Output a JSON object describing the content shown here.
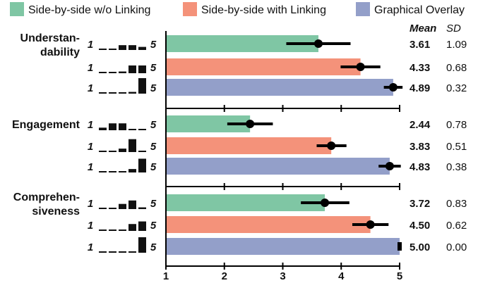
{
  "chart_data": {
    "type": "bar",
    "orientation": "horizontal",
    "series": [
      {
        "name": "Side-by-side w/o Linking",
        "color": "#7fc6a4"
      },
      {
        "name": "Side-by-side with Linking",
        "color": "#f4927a"
      },
      {
        "name": "Graphical Overlay",
        "color": "#939fc9"
      }
    ],
    "stat_headers": {
      "mean": "Mean",
      "sd": "SD"
    },
    "scale": {
      "min_label": "1",
      "max_label": "5"
    },
    "xlim": [
      1,
      5
    ],
    "xticks": [
      "1",
      "2",
      "3",
      "4",
      "5"
    ],
    "grid": false,
    "legend_position": "top",
    "groups": [
      {
        "label_lines": [
          "Understan-",
          "dability"
        ],
        "rows": [
          {
            "series": 0,
            "mean": 3.61,
            "sd": 1.09,
            "mean_text": "3.61",
            "sd_text": "1.09",
            "ci": [
              3.06,
              4.16
            ],
            "hist": [
              0.05,
              0.05,
              0.28,
              0.28,
              0.18
            ]
          },
          {
            "series": 1,
            "mean": 4.33,
            "sd": 0.68,
            "mean_text": "4.33",
            "sd_text": "0.68",
            "ci": [
              3.99,
              4.67
            ],
            "hist": [
              0,
              0,
              0.1,
              0.45,
              0.45
            ]
          },
          {
            "series": 2,
            "mean": 4.89,
            "sd": 0.32,
            "mean_text": "4.89",
            "sd_text": "0.32",
            "ci": [
              4.73,
              5.05
            ],
            "hist": [
              0,
              0,
              0,
              0.1,
              0.9
            ]
          }
        ]
      },
      {
        "label_lines": [
          "Engagement"
        ],
        "rows": [
          {
            "series": 0,
            "mean": 2.44,
            "sd": 0.78,
            "mean_text": "2.44",
            "sd_text": "0.78",
            "ci": [
              2.05,
              2.83
            ],
            "hist": [
              0.15,
              0.4,
              0.4,
              0.05,
              0
            ]
          },
          {
            "series": 1,
            "mean": 3.83,
            "sd": 0.51,
            "mean_text": "3.83",
            "sd_text": "0.51",
            "ci": [
              3.58,
              4.09
            ],
            "hist": [
              0,
              0,
              0.2,
              0.75,
              0.05
            ]
          },
          {
            "series": 2,
            "mean": 4.83,
            "sd": 0.38,
            "mean_text": "4.83",
            "sd_text": "0.38",
            "ci": [
              4.64,
              5.02
            ],
            "hist": [
              0,
              0,
              0,
              0.2,
              0.8
            ]
          }
        ]
      },
      {
        "label_lines": [
          "Comprehen-",
          "siveness"
        ],
        "rows": [
          {
            "series": 0,
            "mean": 3.72,
            "sd": 0.83,
            "mean_text": "3.72",
            "sd_text": "0.83",
            "ci": [
              3.31,
              4.14
            ],
            "hist": [
              0.05,
              0.05,
              0.3,
              0.5,
              0.1
            ]
          },
          {
            "series": 1,
            "mean": 4.5,
            "sd": 0.62,
            "mean_text": "4.50",
            "sd_text": "0.62",
            "ci": [
              4.19,
              4.81
            ],
            "hist": [
              0,
              0,
              0.05,
              0.4,
              0.55
            ]
          },
          {
            "series": 2,
            "mean": 5.0,
            "sd": 0.0,
            "mean_text": "5.00",
            "sd_text": "0.00",
            "ci": [
              5.0,
              5.0
            ],
            "hist": [
              0,
              0,
              0,
              0,
              1
            ]
          }
        ]
      }
    ]
  }
}
